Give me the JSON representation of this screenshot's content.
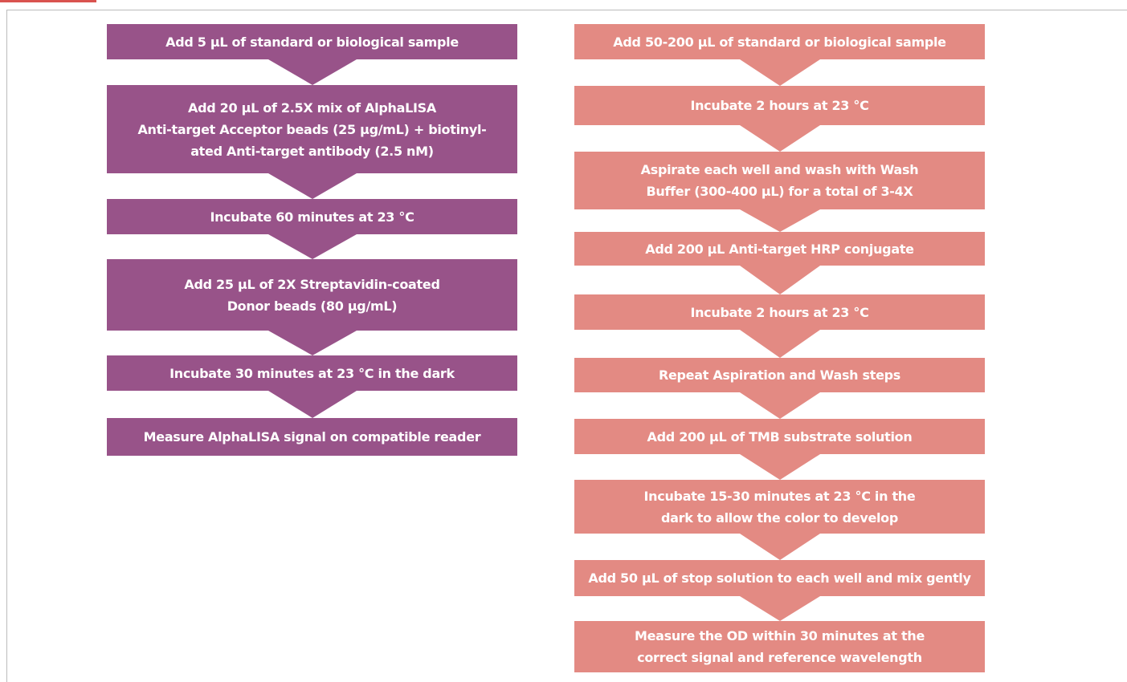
{
  "left_steps": [
    [
      "Add 5 µL of standard or biological sample"
    ],
    [
      "Add 20 µL of 2.5X mix of AlphaLISA",
      "Anti-target Acceptor beads (25 µg/mL) + biotinyl-",
      "ated Anti-target antibody (2.5 nM)"
    ],
    [
      "Incubate 60 minutes at 23 °C"
    ],
    [
      "Add 25 µL of 2X Streptavidin-coated",
      "Donor beads (80 µg/mL)"
    ],
    [
      "Incubate 30 minutes at 23 °C in the dark"
    ],
    [
      "Measure AlphaLISA signal on compatible reader"
    ]
  ],
  "right_steps": [
    [
      "Add 50-200 µL of standard or biological sample"
    ],
    [
      "Incubate 2 hours at 23 °C"
    ],
    [
      "Aspirate each well and wash with Wash",
      "Buffer (300-400 µL) for a total of 3-4X"
    ],
    [
      "Add 200 µL Anti-target HRP conjugate"
    ],
    [
      "Incubate 2 hours at 23 °C"
    ],
    [
      "Repeat Aspiration and Wash steps"
    ],
    [
      "Add 200 µL of TMB substrate solution"
    ],
    [
      "Incubate 15-30 minutes at 23 °C in the",
      "dark to allow the color to develop"
    ],
    [
      "Add 50 µL of stop solution to each well and mix gently"
    ],
    [
      "Measure the OD within 30 minutes at the",
      "correct signal and reference wavelength"
    ]
  ]
}
